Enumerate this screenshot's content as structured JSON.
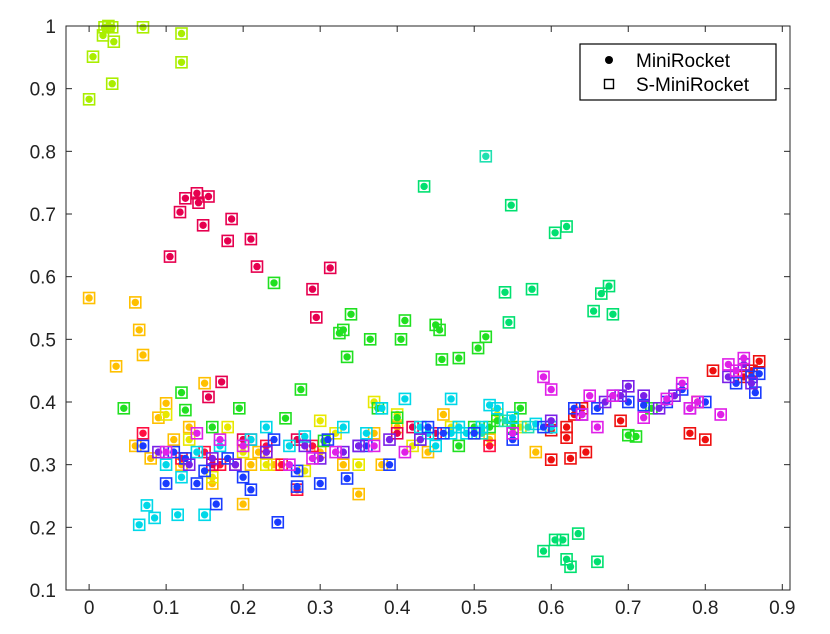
{
  "chart_data": {
    "type": "scatter",
    "xlim": [
      -0.03,
      0.91
    ],
    "ylim": [
      0.1,
      1.0
    ],
    "xticks": [
      "0",
      "0.1",
      "0.2",
      "0.3",
      "0.4",
      "0.5",
      "0.6",
      "0.7",
      "0.8",
      "0.9"
    ],
    "yticks": [
      "0.1",
      "0.2",
      "0.3",
      "0.4",
      "0.5",
      "0.6",
      "0.7",
      "0.8",
      "0.9",
      "1"
    ],
    "xtick_values": [
      0,
      0.1,
      0.2,
      0.3,
      0.4,
      0.5,
      0.6,
      0.7,
      0.8,
      0.9
    ],
    "ytick_values": [
      0.1,
      0.2,
      0.3,
      0.4,
      0.5,
      0.6,
      0.7,
      0.8,
      0.9,
      1.0
    ],
    "grid": false,
    "legend": {
      "position": "top-right",
      "entries": [
        {
          "name": "MiniRocket",
          "marker": "filled-circle"
        },
        {
          "name": "S-MiniRocket",
          "marker": "open-square"
        }
      ]
    },
    "note": "Each point drawn as filled circle (MiniRocket) inside open square (S-MiniRocket); color = hue group",
    "groups": [
      {
        "color": "#aaee00",
        "points": [
          [
            0.0,
            0.883
          ],
          [
            0.005,
            0.951
          ],
          [
            0.018,
            0.985
          ],
          [
            0.02,
            0.998
          ],
          [
            0.025,
            1.0
          ],
          [
            0.03,
            0.998
          ],
          [
            0.03,
            0.908
          ],
          [
            0.032,
            0.975
          ],
          [
            0.07,
            0.998
          ],
          [
            0.12,
            0.988
          ],
          [
            0.12,
            0.942
          ]
        ]
      },
      {
        "color": "#ffc000",
        "points": [
          [
            0.0,
            0.566
          ],
          [
            0.035,
            0.457
          ],
          [
            0.06,
            0.559
          ],
          [
            0.065,
            0.515
          ],
          [
            0.07,
            0.475
          ],
          [
            0.06,
            0.33
          ],
          [
            0.08,
            0.31
          ],
          [
            0.09,
            0.375
          ],
          [
            0.1,
            0.398
          ],
          [
            0.11,
            0.34
          ],
          [
            0.12,
            0.3
          ],
          [
            0.13,
            0.36
          ],
          [
            0.15,
            0.43
          ],
          [
            0.16,
            0.27
          ],
          [
            0.17,
            0.3
          ],
          [
            0.2,
            0.237
          ],
          [
            0.21,
            0.3
          ],
          [
            0.22,
            0.32
          ],
          [
            0.24,
            0.3
          ],
          [
            0.25,
            0.3
          ],
          [
            0.27,
            0.26
          ],
          [
            0.3,
            0.32
          ],
          [
            0.33,
            0.3
          ],
          [
            0.35,
            0.253
          ],
          [
            0.37,
            0.35
          ],
          [
            0.38,
            0.3
          ],
          [
            0.4,
            0.36
          ],
          [
            0.44,
            0.32
          ],
          [
            0.46,
            0.38
          ],
          [
            0.5,
            0.35
          ],
          [
            0.52,
            0.34
          ],
          [
            0.58,
            0.32
          ]
        ]
      },
      {
        "color": "#e8e800",
        "points": [
          [
            0.1,
            0.38
          ],
          [
            0.13,
            0.34
          ],
          [
            0.16,
            0.28
          ],
          [
            0.18,
            0.36
          ],
          [
            0.2,
            0.32
          ],
          [
            0.23,
            0.3
          ],
          [
            0.25,
            0.3
          ],
          [
            0.28,
            0.29
          ],
          [
            0.3,
            0.37
          ],
          [
            0.32,
            0.35
          ],
          [
            0.35,
            0.3
          ],
          [
            0.37,
            0.4
          ],
          [
            0.4,
            0.38
          ],
          [
            0.42,
            0.33
          ],
          [
            0.47,
            0.36
          ],
          [
            0.53,
            0.38
          ],
          [
            0.56,
            0.36
          ]
        ]
      },
      {
        "color": "#ff0e40",
        "points": [
          [
            0.07,
            0.35
          ],
          [
            0.12,
            0.31
          ],
          [
            0.15,
            0.32
          ],
          [
            0.17,
            0.3
          ],
          [
            0.19,
            0.3
          ],
          [
            0.21,
            0.34
          ],
          [
            0.23,
            0.33
          ],
          [
            0.25,
            0.3
          ],
          [
            0.27,
            0.26
          ],
          [
            0.29,
            0.33
          ],
          [
            0.52,
            0.33
          ]
        ]
      },
      {
        "color": "#e6004f",
        "points": [
          [
            0.105,
            0.632
          ],
          [
            0.118,
            0.703
          ],
          [
            0.125,
            0.725
          ],
          [
            0.14,
            0.733
          ],
          [
            0.142,
            0.718
          ],
          [
            0.148,
            0.682
          ],
          [
            0.155,
            0.728
          ],
          [
            0.155,
            0.408
          ],
          [
            0.172,
            0.432
          ],
          [
            0.18,
            0.657
          ],
          [
            0.185,
            0.692
          ],
          [
            0.21,
            0.66
          ],
          [
            0.218,
            0.616
          ],
          [
            0.29,
            0.58
          ],
          [
            0.295,
            0.535
          ],
          [
            0.313,
            0.614
          ],
          [
            0.16,
            0.3
          ],
          [
            0.2,
            0.34
          ],
          [
            0.23,
            0.32
          ],
          [
            0.27,
            0.34
          ],
          [
            0.4,
            0.35
          ],
          [
            0.42,
            0.36
          ],
          [
            0.45,
            0.35
          ]
        ]
      },
      {
        "color": "#ee1010",
        "points": [
          [
            0.6,
            0.308
          ],
          [
            0.62,
            0.343
          ],
          [
            0.625,
            0.31
          ],
          [
            0.63,
            0.38
          ],
          [
            0.645,
            0.32
          ],
          [
            0.62,
            0.36
          ],
          [
            0.64,
            0.39
          ],
          [
            0.69,
            0.37
          ],
          [
            0.78,
            0.35
          ],
          [
            0.79,
            0.4
          ],
          [
            0.8,
            0.34
          ],
          [
            0.81,
            0.45
          ],
          [
            0.85,
            0.44
          ],
          [
            0.86,
            0.45
          ],
          [
            0.87,
            0.465
          ],
          [
            0.6,
            0.355
          ]
        ]
      },
      {
        "color": "#20e020",
        "points": [
          [
            0.045,
            0.39
          ],
          [
            0.12,
            0.415
          ],
          [
            0.125,
            0.387
          ],
          [
            0.16,
            0.36
          ],
          [
            0.195,
            0.39
          ],
          [
            0.24,
            0.59
          ],
          [
            0.255,
            0.374
          ],
          [
            0.275,
            0.42
          ],
          [
            0.305,
            0.338
          ],
          [
            0.325,
            0.51
          ],
          [
            0.33,
            0.515
          ],
          [
            0.335,
            0.472
          ],
          [
            0.34,
            0.54
          ],
          [
            0.365,
            0.5
          ],
          [
            0.375,
            0.39
          ],
          [
            0.4,
            0.375
          ],
          [
            0.405,
            0.5
          ],
          [
            0.41,
            0.53
          ],
          [
            0.45,
            0.523
          ],
          [
            0.455,
            0.515
          ],
          [
            0.458,
            0.468
          ],
          [
            0.48,
            0.47
          ],
          [
            0.48,
            0.33
          ],
          [
            0.5,
            0.36
          ],
          [
            0.505,
            0.486
          ],
          [
            0.515,
            0.504
          ],
          [
            0.52,
            0.36
          ],
          [
            0.53,
            0.37
          ],
          [
            0.55,
            0.36
          ],
          [
            0.56,
            0.39
          ],
          [
            0.7,
            0.347
          ],
          [
            0.71,
            0.345
          ],
          [
            0.73,
            0.39
          ]
        ]
      },
      {
        "color": "#00e070",
        "points": [
          [
            0.435,
            0.744
          ],
          [
            0.548,
            0.714
          ],
          [
            0.54,
            0.575
          ],
          [
            0.545,
            0.527
          ],
          [
            0.575,
            0.58
          ],
          [
            0.605,
            0.67
          ],
          [
            0.62,
            0.68
          ],
          [
            0.655,
            0.545
          ],
          [
            0.665,
            0.573
          ],
          [
            0.675,
            0.585
          ],
          [
            0.68,
            0.54
          ],
          [
            0.59,
            0.162
          ],
          [
            0.605,
            0.18
          ],
          [
            0.615,
            0.18
          ],
          [
            0.62,
            0.149
          ],
          [
            0.625,
            0.137
          ],
          [
            0.635,
            0.19
          ],
          [
            0.66,
            0.145
          ]
        ]
      },
      {
        "color": "#20e0b0",
        "points": [
          [
            0.515,
            0.792
          ],
          [
            0.38,
            0.39
          ],
          [
            0.43,
            0.34
          ],
          [
            0.48,
            0.36
          ],
          [
            0.51,
            0.35
          ],
          [
            0.54,
            0.37
          ],
          [
            0.57,
            0.36
          ],
          [
            0.6,
            0.36
          ]
        ]
      },
      {
        "color": "#00d8e8",
        "points": [
          [
            0.065,
            0.204
          ],
          [
            0.075,
            0.235
          ],
          [
            0.085,
            0.215
          ],
          [
            0.115,
            0.22
          ],
          [
            0.15,
            0.22
          ],
          [
            0.1,
            0.3
          ],
          [
            0.12,
            0.28
          ],
          [
            0.14,
            0.32
          ],
          [
            0.17,
            0.33
          ],
          [
            0.21,
            0.34
          ],
          [
            0.23,
            0.36
          ],
          [
            0.26,
            0.33
          ],
          [
            0.28,
            0.345
          ],
          [
            0.33,
            0.36
          ],
          [
            0.36,
            0.35
          ],
          [
            0.38,
            0.39
          ],
          [
            0.41,
            0.405
          ],
          [
            0.43,
            0.36
          ],
          [
            0.44,
            0.35
          ],
          [
            0.45,
            0.33
          ],
          [
            0.47,
            0.35
          ],
          [
            0.48,
            0.36
          ],
          [
            0.49,
            0.35
          ],
          [
            0.51,
            0.36
          ],
          [
            0.52,
            0.395
          ],
          [
            0.53,
            0.39
          ],
          [
            0.55,
            0.375
          ],
          [
            0.58,
            0.365
          ],
          [
            0.6,
            0.36
          ],
          [
            0.47,
            0.405
          ]
        ]
      },
      {
        "color": "#1a3cff",
        "points": [
          [
            0.07,
            0.33
          ],
          [
            0.1,
            0.27
          ],
          [
            0.11,
            0.32
          ],
          [
            0.125,
            0.31
          ],
          [
            0.14,
            0.27
          ],
          [
            0.15,
            0.29
          ],
          [
            0.165,
            0.237
          ],
          [
            0.18,
            0.31
          ],
          [
            0.2,
            0.28
          ],
          [
            0.21,
            0.26
          ],
          [
            0.24,
            0.34
          ],
          [
            0.245,
            0.208
          ],
          [
            0.27,
            0.265
          ],
          [
            0.27,
            0.29
          ],
          [
            0.3,
            0.27
          ],
          [
            0.31,
            0.34
          ],
          [
            0.335,
            0.278
          ],
          [
            0.35,
            0.33
          ],
          [
            0.36,
            0.33
          ],
          [
            0.39,
            0.3
          ],
          [
            0.44,
            0.36
          ],
          [
            0.46,
            0.35
          ],
          [
            0.5,
            0.35
          ],
          [
            0.55,
            0.34
          ],
          [
            0.59,
            0.36
          ],
          [
            0.63,
            0.39
          ],
          [
            0.66,
            0.39
          ],
          [
            0.68,
            0.41
          ],
          [
            0.7,
            0.4
          ],
          [
            0.72,
            0.395
          ],
          [
            0.75,
            0.4
          ],
          [
            0.77,
            0.42
          ],
          [
            0.8,
            0.4
          ],
          [
            0.84,
            0.43
          ],
          [
            0.86,
            0.44
          ],
          [
            0.865,
            0.415
          ],
          [
            0.87,
            0.445
          ]
        ]
      },
      {
        "color": "#7a20e8",
        "points": [
          [
            0.09,
            0.32
          ],
          [
            0.13,
            0.3
          ],
          [
            0.16,
            0.31
          ],
          [
            0.19,
            0.3
          ],
          [
            0.23,
            0.32
          ],
          [
            0.28,
            0.33
          ],
          [
            0.3,
            0.31
          ],
          [
            0.33,
            0.32
          ],
          [
            0.35,
            0.33
          ],
          [
            0.39,
            0.34
          ],
          [
            0.43,
            0.34
          ],
          [
            0.55,
            0.35
          ],
          [
            0.6,
            0.37
          ],
          [
            0.64,
            0.38
          ],
          [
            0.67,
            0.4
          ],
          [
            0.69,
            0.41
          ],
          [
            0.7,
            0.425
          ],
          [
            0.72,
            0.41
          ],
          [
            0.74,
            0.39
          ],
          [
            0.76,
            0.41
          ],
          [
            0.78,
            0.39
          ],
          [
            0.83,
            0.44
          ],
          [
            0.85,
            0.46
          ],
          [
            0.86,
            0.43
          ]
        ]
      },
      {
        "color": "#e020e8",
        "points": [
          [
            0.1,
            0.32
          ],
          [
            0.14,
            0.35
          ],
          [
            0.17,
            0.34
          ],
          [
            0.2,
            0.33
          ],
          [
            0.26,
            0.3
          ],
          [
            0.29,
            0.31
          ],
          [
            0.32,
            0.32
          ],
          [
            0.37,
            0.33
          ],
          [
            0.41,
            0.32
          ],
          [
            0.55,
            0.35
          ],
          [
            0.59,
            0.44
          ],
          [
            0.6,
            0.42
          ],
          [
            0.64,
            0.38
          ],
          [
            0.65,
            0.41
          ],
          [
            0.66,
            0.36
          ],
          [
            0.68,
            0.41
          ],
          [
            0.72,
            0.375
          ],
          [
            0.75,
            0.405
          ],
          [
            0.77,
            0.43
          ],
          [
            0.78,
            0.39
          ],
          [
            0.79,
            0.4
          ],
          [
            0.82,
            0.38
          ],
          [
            0.83,
            0.46
          ],
          [
            0.84,
            0.45
          ],
          [
            0.85,
            0.47
          ]
        ]
      }
    ]
  }
}
